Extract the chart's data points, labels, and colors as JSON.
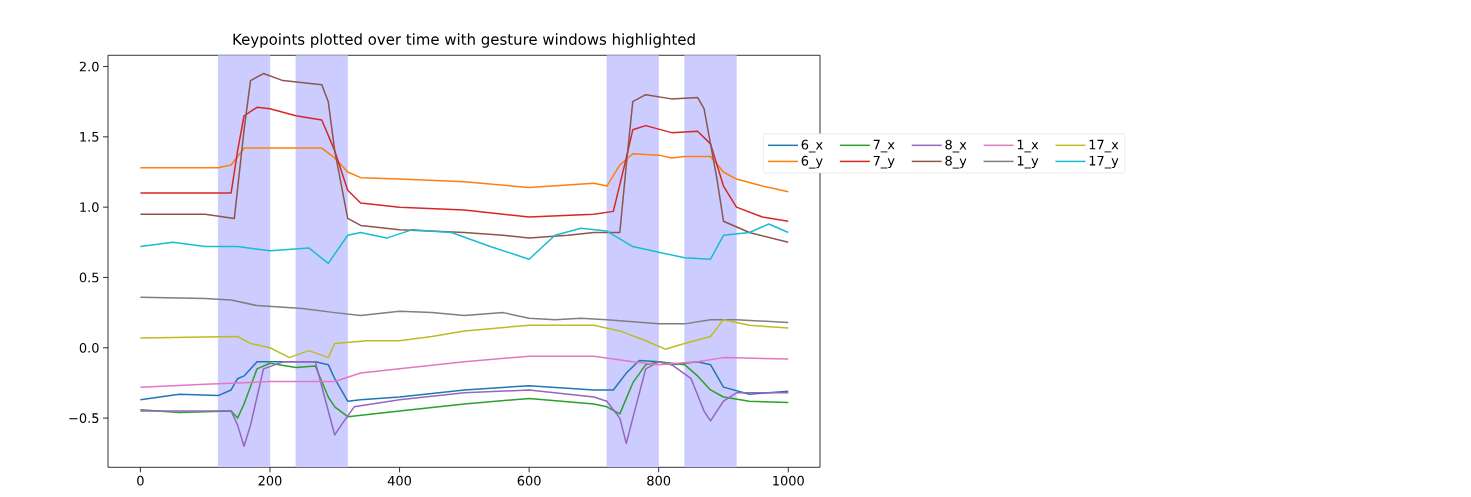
{
  "chart_data": {
    "type": "line",
    "title": "Keypoints plotted over time with gesture windows highlighted",
    "xlim": [
      -50,
      1049
    ],
    "ylim": [
      -0.85,
      2.08
    ],
    "xticks": [
      0,
      200,
      400,
      600,
      800,
      1000
    ],
    "yticks": [
      {
        "value": -0.5,
        "label": "−0.5"
      },
      {
        "value": 0,
        "label": "0.0"
      },
      {
        "value": 0.5,
        "label": "0.5"
      },
      {
        "value": 1,
        "label": "1.0"
      },
      {
        "value": 1.5,
        "label": "1.5"
      },
      {
        "value": 2,
        "label": "2.0"
      }
    ],
    "legend": "right",
    "bands": [
      {
        "axis": "x",
        "from": 120,
        "to": 200,
        "color": "#ccccff"
      },
      {
        "axis": "x",
        "from": 240,
        "to": 320,
        "color": "#ccccff"
      },
      {
        "axis": "x",
        "from": 720,
        "to": 800,
        "color": "#ccccff"
      },
      {
        "axis": "x",
        "from": 840,
        "to": 920,
        "color": "#ccccff"
      }
    ],
    "series": [
      {
        "name": "6_x",
        "color": "#1f77b4",
        "x": [
          0,
          60,
          120,
          140,
          150,
          160,
          180,
          270,
          290,
          300,
          320,
          340,
          400,
          500,
          600,
          700,
          730,
          750,
          770,
          800,
          820,
          860,
          880,
          900,
          940,
          1000
        ],
        "values": [
          -0.37,
          -0.33,
          -0.34,
          -0.3,
          -0.22,
          -0.2,
          -0.1,
          -0.1,
          -0.12,
          -0.22,
          -0.38,
          -0.37,
          -0.35,
          -0.3,
          -0.27,
          -0.3,
          -0.3,
          -0.18,
          -0.09,
          -0.1,
          -0.12,
          -0.1,
          -0.12,
          -0.28,
          -0.33,
          -0.31
        ]
      },
      {
        "name": "6_y",
        "color": "#ff7f0e",
        "x": [
          0,
          120,
          140,
          160,
          280,
          300,
          320,
          340,
          400,
          500,
          600,
          700,
          720,
          740,
          760,
          800,
          820,
          840,
          880,
          900,
          920,
          960,
          1000
        ],
        "values": [
          1.28,
          1.28,
          1.3,
          1.42,
          1.42,
          1.35,
          1.25,
          1.21,
          1.2,
          1.18,
          1.14,
          1.17,
          1.15,
          1.3,
          1.38,
          1.37,
          1.35,
          1.36,
          1.36,
          1.25,
          1.2,
          1.15,
          1.11
        ]
      },
      {
        "name": "7_x",
        "color": "#2ca02c",
        "x": [
          0,
          60,
          140,
          150,
          160,
          180,
          200,
          240,
          270,
          290,
          300,
          320,
          400,
          500,
          600,
          700,
          720,
          740,
          760,
          780,
          800,
          840,
          860,
          880,
          900,
          940,
          1000
        ],
        "values": [
          -0.44,
          -0.46,
          -0.45,
          -0.5,
          -0.4,
          -0.15,
          -0.11,
          -0.14,
          -0.13,
          -0.35,
          -0.42,
          -0.49,
          -0.45,
          -0.4,
          -0.36,
          -0.4,
          -0.42,
          -0.47,
          -0.25,
          -0.12,
          -0.1,
          -0.12,
          -0.2,
          -0.3,
          -0.35,
          -0.38,
          -0.39
        ]
      },
      {
        "name": "7_y",
        "color": "#d62728",
        "x": [
          0,
          140,
          150,
          160,
          180,
          200,
          240,
          280,
          300,
          320,
          340,
          400,
          500,
          600,
          700,
          730,
          750,
          760,
          780,
          820,
          860,
          880,
          900,
          920,
          960,
          1000
        ],
        "values": [
          1.1,
          1.1,
          1.4,
          1.65,
          1.71,
          1.7,
          1.65,
          1.62,
          1.4,
          1.12,
          1.03,
          1.0,
          0.98,
          0.93,
          0.95,
          0.97,
          1.35,
          1.55,
          1.58,
          1.53,
          1.54,
          1.45,
          1.15,
          1.0,
          0.93,
          0.9
        ]
      },
      {
        "name": "8_x",
        "color": "#9467bd",
        "x": [
          0,
          140,
          150,
          160,
          170,
          190,
          220,
          270,
          290,
          300,
          310,
          330,
          400,
          500,
          600,
          700,
          720,
          740,
          750,
          760,
          780,
          800,
          820,
          850,
          870,
          880,
          900,
          920,
          1000
        ],
        "values": [
          -0.45,
          -0.45,
          -0.55,
          -0.7,
          -0.55,
          -0.15,
          -0.1,
          -0.1,
          -0.45,
          -0.62,
          -0.55,
          -0.42,
          -0.37,
          -0.32,
          -0.3,
          -0.35,
          -0.38,
          -0.5,
          -0.68,
          -0.5,
          -0.15,
          -0.1,
          -0.12,
          -0.22,
          -0.45,
          -0.52,
          -0.38,
          -0.32,
          -0.32
        ]
      },
      {
        "name": "8_y",
        "color": "#8c564b",
        "x": [
          0,
          100,
          145,
          160,
          170,
          190,
          220,
          280,
          290,
          300,
          320,
          340,
          400,
          500,
          560,
          600,
          660,
          700,
          740,
          750,
          760,
          780,
          820,
          860,
          870,
          890,
          900,
          940,
          1000
        ],
        "values": [
          0.95,
          0.95,
          0.92,
          1.55,
          1.9,
          1.95,
          1.9,
          1.87,
          1.75,
          1.4,
          0.92,
          0.87,
          0.84,
          0.82,
          0.8,
          0.78,
          0.8,
          0.82,
          0.82,
          1.3,
          1.75,
          1.8,
          1.77,
          1.78,
          1.7,
          1.2,
          0.9,
          0.82,
          0.75
        ]
      },
      {
        "name": "1_x",
        "color": "#e377c2",
        "x": [
          0,
          100,
          200,
          300,
          340,
          400,
          500,
          600,
          700,
          760,
          800,
          860,
          900,
          1000
        ],
        "values": [
          -0.28,
          -0.26,
          -0.24,
          -0.24,
          -0.18,
          -0.15,
          -0.1,
          -0.06,
          -0.06,
          -0.1,
          -0.12,
          -0.1,
          -0.07,
          -0.08
        ]
      },
      {
        "name": "1_y",
        "color": "#7f7f7f",
        "x": [
          0,
          100,
          140,
          180,
          250,
          300,
          340,
          400,
          450,
          500,
          560,
          600,
          640,
          680,
          720,
          800,
          840,
          880,
          920,
          1000
        ],
        "values": [
          0.36,
          0.35,
          0.34,
          0.3,
          0.28,
          0.25,
          0.23,
          0.26,
          0.25,
          0.23,
          0.25,
          0.21,
          0.2,
          0.21,
          0.2,
          0.17,
          0.17,
          0.2,
          0.2,
          0.18
        ]
      },
      {
        "name": "17_x",
        "color": "#bcbd22",
        "x": [
          0,
          150,
          170,
          200,
          230,
          260,
          290,
          300,
          350,
          400,
          450,
          500,
          600,
          700,
          740,
          780,
          810,
          840,
          880,
          900,
          940,
          1000
        ],
        "values": [
          0.07,
          0.08,
          0.03,
          0.0,
          -0.07,
          -0.02,
          -0.07,
          0.03,
          0.05,
          0.05,
          0.08,
          0.12,
          0.16,
          0.16,
          0.12,
          0.05,
          -0.01,
          0.03,
          0.08,
          0.2,
          0.16,
          0.14
        ]
      },
      {
        "name": "17_y",
        "color": "#17becf",
        "x": [
          0,
          50,
          100,
          150,
          200,
          260,
          290,
          320,
          340,
          380,
          420,
          480,
          540,
          600,
          640,
          680,
          720,
          760,
          800,
          840,
          880,
          900,
          940,
          970,
          1000
        ],
        "values": [
          0.72,
          0.75,
          0.72,
          0.72,
          0.69,
          0.71,
          0.6,
          0.8,
          0.82,
          0.78,
          0.84,
          0.82,
          0.72,
          0.63,
          0.8,
          0.85,
          0.83,
          0.72,
          0.68,
          0.64,
          0.63,
          0.8,
          0.82,
          0.88,
          0.82
        ]
      }
    ]
  }
}
